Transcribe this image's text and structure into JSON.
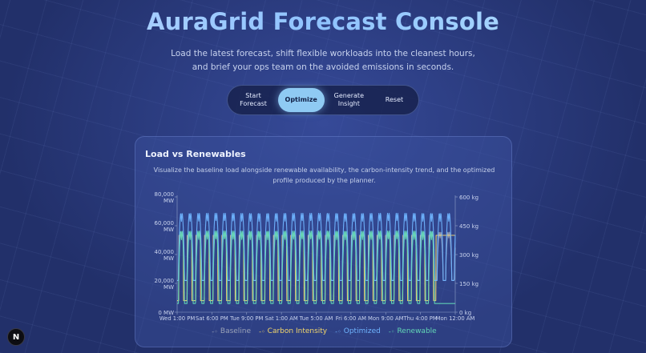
{
  "header": {
    "title": "AuraGrid Forecast Console",
    "subtitle": "Load the latest forecast, shift flexible workloads into the cleanest hours, and brief your ops team on the avoided emissions in seconds."
  },
  "controls": {
    "start": "Start\nForecast",
    "optimize": "Optimize",
    "generate": "Generate\nInsight",
    "reset": "Reset",
    "active": "Optimize"
  },
  "panel": {
    "title": "Load vs Renewables",
    "description": "Visualize the baseline load alongside renewable availability, the carbon-intensity trend, and the optimized profile produced by the planner."
  },
  "badge": {
    "label": "N"
  },
  "chart_data": {
    "type": "line",
    "x_tick_labels": [
      "Wed 1:00 PM",
      "Sat 6:00 PM",
      "Tue 9:00 PM",
      "Sat 1:00 AM",
      "Tue 5:00 AM",
      "Fri 6:00 AM",
      "Mon 9:00 AM",
      "Thu 4:00 PM",
      "Mon 12:00 AM"
    ],
    "left_axis": {
      "ticks": [
        "0 MW",
        "20,000 MW",
        "40,000 MW",
        "60,000 MW",
        "80,000 MW"
      ],
      "ylim": [
        0,
        80000
      ]
    },
    "right_axis": {
      "ticks": [
        "0 kg",
        "150 kg",
        "300 kg",
        "450 kg",
        "600 kg"
      ],
      "ylim": [
        0,
        600
      ]
    },
    "cycles": 30,
    "series": [
      {
        "name": "Baseline",
        "color": "#9aa3b8",
        "axis": "left",
        "profile": "daily",
        "low": 22000,
        "high": 58000
      },
      {
        "name": "Carbon Intensity",
        "color": "#f2d66b",
        "axis": "right",
        "profile": "square",
        "low": 60,
        "high": 400,
        "tail": 400
      },
      {
        "name": "Optimized",
        "color": "#6fb4ff",
        "axis": "left",
        "profile": "daily",
        "low": 22000,
        "high": 72000
      },
      {
        "name": "Renewable",
        "color": "#62d6b6",
        "axis": "left",
        "profile": "daily",
        "low": 6000,
        "high": 60000,
        "tail": 6000
      }
    ],
    "legend": {
      "position": "bottom"
    }
  }
}
